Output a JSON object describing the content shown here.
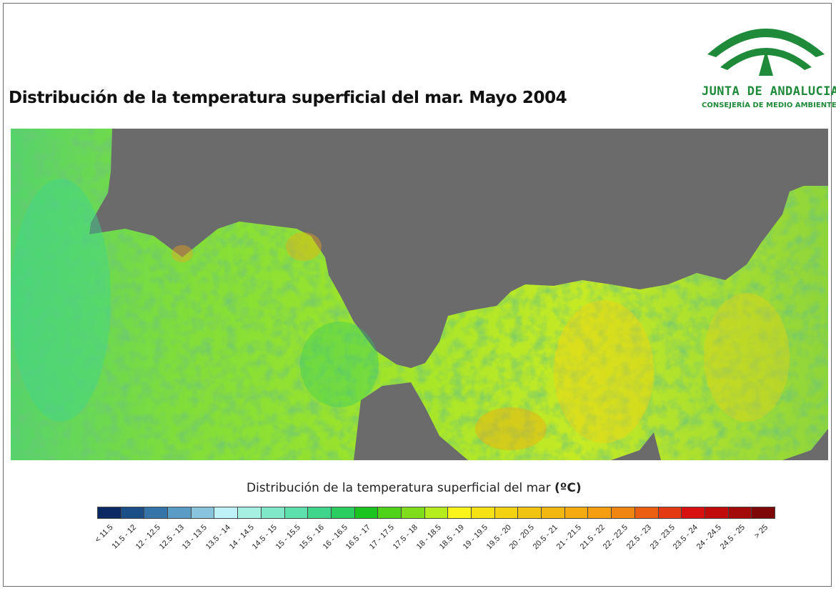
{
  "title": "Distribución de la temperatura superficial del mar. Mayo 2004",
  "logo": {
    "name": "JUNTA DE ANDALUCIA",
    "subtitle": "CONSEJERÍA DE MEDIO AMBIENTE",
    "color": "#1f8a3a"
  },
  "map": {
    "land_color": "#6b6b6b",
    "water_base_color": "#8ed53a"
  },
  "legend": {
    "title": "Distribución de la temperatura superficial del mar",
    "unit": "(ºC)",
    "classes": [
      {
        "label": "< 11.5",
        "color": "#0b2a63"
      },
      {
        "label": "11.5 - 12",
        "color": "#1c4f88"
      },
      {
        "label": "12 - 12.5",
        "color": "#3574a8"
      },
      {
        "label": "12.5 - 13",
        "color": "#5a9cc6"
      },
      {
        "label": "13 - 13.5",
        "color": "#88c5dc"
      },
      {
        "label": "13.5 - 14",
        "color": "#bff2f8"
      },
      {
        "label": "14 - 14.5",
        "color": "#a6f0e2"
      },
      {
        "label": "14.5 - 15",
        "color": "#80e8c8"
      },
      {
        "label": "15 - 15.5",
        "color": "#5ee0ac"
      },
      {
        "label": "15.5 - 16",
        "color": "#3fd68c"
      },
      {
        "label": "16 - 16.5",
        "color": "#2bcc60"
      },
      {
        "label": "16.5 - 17",
        "color": "#1bc41f"
      },
      {
        "label": "17 - 17.5",
        "color": "#4fd21a"
      },
      {
        "label": "17.5 - 18",
        "color": "#7fdd1c"
      },
      {
        "label": "18 - 18.5",
        "color": "#b4ec1e"
      },
      {
        "label": "18.5 - 19",
        "color": "#fbf41b"
      },
      {
        "label": "19 - 19.5",
        "color": "#f6e214"
      },
      {
        "label": "19.5 - 20",
        "color": "#f3d212"
      },
      {
        "label": "20 - 20.5",
        "color": "#f1c411"
      },
      {
        "label": "20.5 - 21",
        "color": "#f2b811"
      },
      {
        "label": "21 - 21.5",
        "color": "#f4ab10"
      },
      {
        "label": "21.5 - 22",
        "color": "#f49e10"
      },
      {
        "label": "22 - 22.5",
        "color": "#f08510"
      },
      {
        "label": "22.5 - 23",
        "color": "#eb5f12"
      },
      {
        "label": "23 - 23.5",
        "color": "#e33a14"
      },
      {
        "label": "23.5 - 24",
        "color": "#d81010"
      },
      {
        "label": "24 - 24.5",
        "color": "#c20c0c"
      },
      {
        "label": "24.5 - 25",
        "color": "#a50a0a"
      },
      {
        "label": "> 25",
        "color": "#7e0808"
      }
    ]
  }
}
